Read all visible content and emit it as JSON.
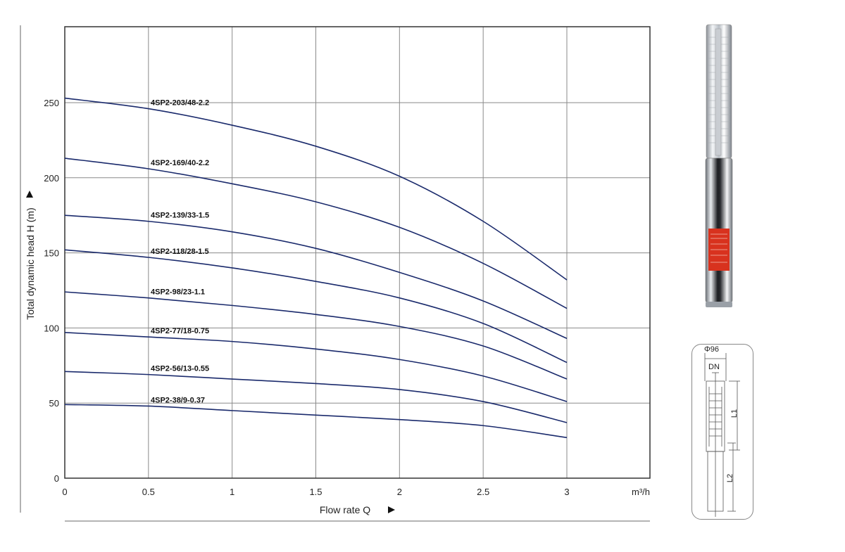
{
  "chart_data": {
    "type": "line",
    "title": "",
    "xlabel": "Flow rate Q",
    "ylabel": "Total dynamic head H (m)",
    "x_unit": "m³/h",
    "xlim": [
      0,
      3.5
    ],
    "ylim": [
      0,
      300
    ],
    "xticks": [
      "0",
      "0.5",
      "1",
      "1.5",
      "2",
      "2.5",
      "3"
    ],
    "yticks": [
      "0",
      "50",
      "100",
      "150",
      "200",
      "250"
    ],
    "grid": true,
    "legend": "inline labels",
    "x": [
      0,
      0.5,
      1,
      1.5,
      2,
      2.5,
      3
    ],
    "series": [
      {
        "name": "4SP2-203/48-2.2",
        "values": [
          253,
          246,
          235,
          221,
          201,
          171,
          132
        ]
      },
      {
        "name": "4SP2-169/40-2.2",
        "values": [
          213,
          206,
          196,
          184,
          167,
          143,
          113
        ]
      },
      {
        "name": "4SP2-139/33-1.5",
        "values": [
          175,
          171,
          164,
          153,
          137,
          118,
          93
        ]
      },
      {
        "name": "4SP2-118/28-1.5",
        "values": [
          152,
          147,
          140,
          131,
          120,
          103,
          77
        ]
      },
      {
        "name": "4SP2-98/23-1.1",
        "values": [
          124,
          120,
          115,
          109,
          101,
          88,
          66
        ]
      },
      {
        "name": "4SP2-77/18-0.75",
        "values": [
          97,
          94,
          91,
          86,
          79,
          68,
          51
        ]
      },
      {
        "name": "4SP2-56/13-0.55",
        "values": [
          71,
          69,
          66,
          63,
          59,
          51,
          37
        ]
      },
      {
        "name": "4SP2-38/9-0.37",
        "values": [
          49,
          48,
          45,
          42,
          39,
          35,
          27
        ]
      }
    ],
    "line_color": "#1a2a6c",
    "grid_color": "#8a8a8a"
  },
  "axes": {
    "x_title": "Flow rate Q",
    "x_arrow": "▶",
    "y_title": "Total dynamic head H (m)",
    "y_arrow": "▶",
    "x_unit": "m³/h"
  },
  "diagram": {
    "diameter": "Φ96",
    "dn": "DN",
    "l1": "L1",
    "l2": "L2"
  },
  "product": {
    "photo_icon": "submersible-pump-photo",
    "label_color": "#d8321e"
  }
}
